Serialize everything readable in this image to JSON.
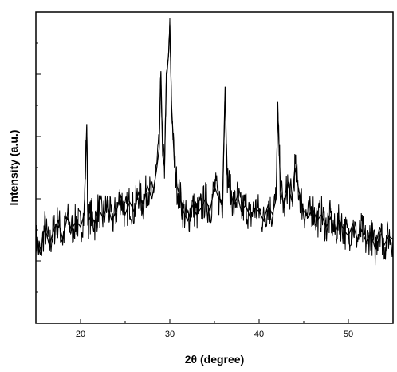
{
  "chart_data": {
    "type": "line",
    "title": "",
    "xlabel": "2θ (degree)",
    "ylabel": "Intensity (a.u.)",
    "xlim": [
      15,
      55
    ],
    "ylim": [
      0,
      100
    ],
    "x_ticks": [
      20,
      30,
      40,
      50
    ],
    "y_tick_labels": "none",
    "grid": false,
    "legend": "none",
    "line_color": "#000000",
    "series": [
      {
        "x": [
          15,
          15.5,
          16,
          16.5,
          17,
          17.5,
          18,
          18.5,
          19,
          19.5,
          20,
          20.4,
          20.7,
          20.8,
          20.9,
          21.2,
          21.6,
          22,
          22.5,
          23,
          23.5,
          24,
          24.5,
          25,
          25.5,
          26,
          26.5,
          27,
          27.5,
          28,
          28.5,
          28.8,
          29,
          29.2,
          29.4,
          29.6,
          29.9,
          30,
          30.2,
          30.5,
          30.8,
          31.2,
          31.5,
          32,
          32.5,
          33,
          33.5,
          34,
          34.5,
          35,
          35.5,
          35.9,
          36.2,
          36.4,
          36.8,
          37.2,
          37.6,
          38,
          38.5,
          39,
          39.5,
          40,
          40.5,
          41,
          41.5,
          41.9,
          42.1,
          42.4,
          42.8,
          43.2,
          43.7,
          44,
          44.5,
          45,
          45.5,
          46,
          46.5,
          47,
          47.5,
          48,
          48.5,
          49,
          49.5,
          50,
          50.5,
          51,
          51.5,
          52,
          52.5,
          53,
          53.5,
          54,
          54.5,
          55
        ],
        "y": [
          27,
          22,
          31,
          25,
          30,
          33,
          27,
          34,
          30,
          33,
          31,
          35,
          64,
          36,
          33,
          35,
          32,
          37,
          34,
          38,
          33,
          36,
          41,
          35,
          39,
          36,
          42,
          38,
          44,
          40,
          49,
          56,
          81,
          54,
          50,
          77,
          88,
          96,
          70,
          52,
          44,
          40,
          36,
          33,
          38,
          35,
          37,
          40,
          36,
          44,
          40,
          39,
          76,
          48,
          42,
          38,
          41,
          36,
          38,
          34,
          37,
          36,
          33,
          38,
          35,
          40,
          68,
          43,
          37,
          45,
          39,
          50,
          42,
          36,
          34,
          37,
          33,
          35,
          31,
          34,
          29,
          33,
          30,
          28,
          32,
          27,
          30,
          26,
          29,
          24,
          31,
          25,
          28,
          27
        ]
      }
    ]
  }
}
